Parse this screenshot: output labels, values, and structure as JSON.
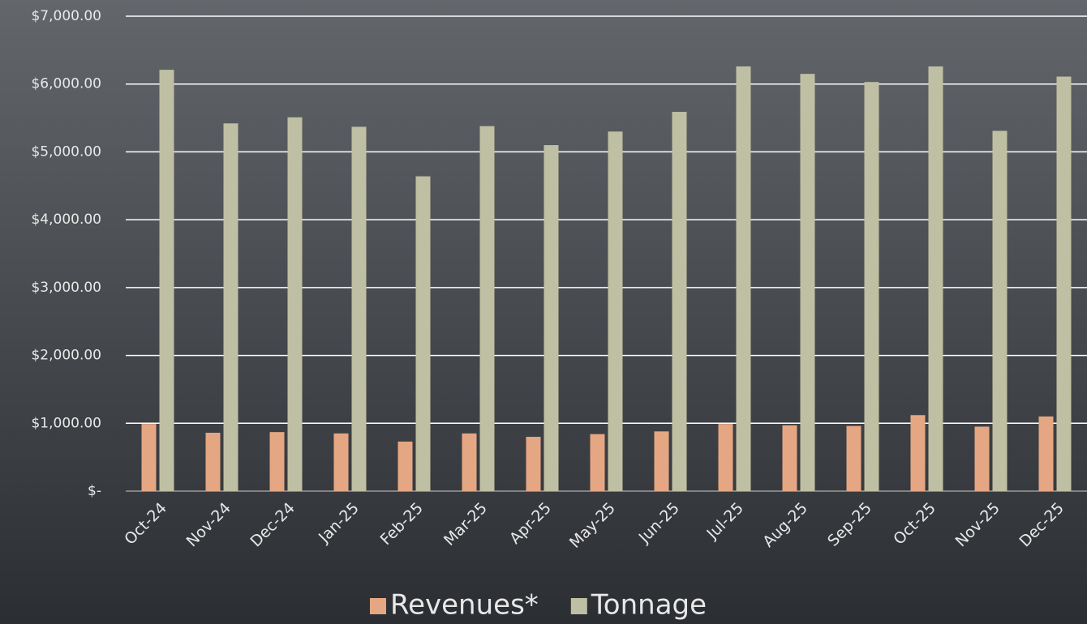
{
  "chart_data": {
    "type": "bar",
    "categories": [
      "Oct-24",
      "Nov-24",
      "Dec-24",
      "Jan-25",
      "Feb-25",
      "Mar-25",
      "Apr-25",
      "May-25",
      "Jun-25",
      "Jul-25",
      "Aug-25",
      "Sep-25",
      "Oct-25",
      "Nov-25",
      "Dec-25"
    ],
    "series": [
      {
        "name": "Revenues*",
        "color": "#e5a783",
        "values": [
          990,
          860,
          870,
          850,
          730,
          850,
          800,
          840,
          880,
          990,
          970,
          960,
          1120,
          950,
          1100
        ]
      },
      {
        "name": "Tonnage",
        "color": "#bfbfa3",
        "values": [
          6210,
          5420,
          5510,
          5370,
          4640,
          5380,
          5100,
          5300,
          5590,
          6260,
          6150,
          6030,
          6260,
          5310,
          6110
        ]
      }
    ],
    "ylim": [
      0,
      7000
    ],
    "yticks": [
      {
        "value": 0,
        "label": "$-"
      },
      {
        "value": 1000,
        "label": "$1,000.00"
      },
      {
        "value": 2000,
        "label": "$2,000.00"
      },
      {
        "value": 3000,
        "label": "$3,000.00"
      },
      {
        "value": 4000,
        "label": "$4,000.00"
      },
      {
        "value": 5000,
        "label": "$5,000.00"
      },
      {
        "value": 6000,
        "label": "$6,000.00"
      },
      {
        "value": 7000,
        "label": "$7,000.00"
      }
    ],
    "grid": true,
    "legend": "bottom"
  }
}
